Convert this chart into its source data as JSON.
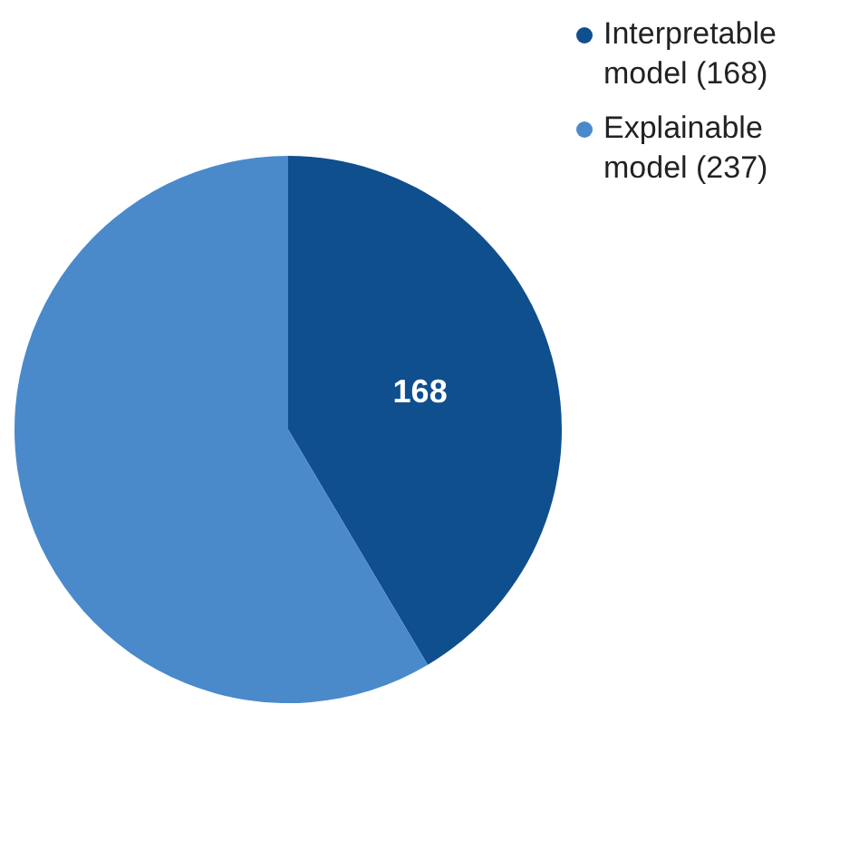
{
  "chart_data": {
    "type": "pie",
    "categories": [
      "Interpretable model (168)",
      "Explainable model (237)"
    ],
    "values": [
      168,
      237
    ],
    "colors": [
      "#0f4f8e",
      "#4a8acb"
    ],
    "value_labels": [
      "168",
      null
    ],
    "legend": "top right"
  }
}
